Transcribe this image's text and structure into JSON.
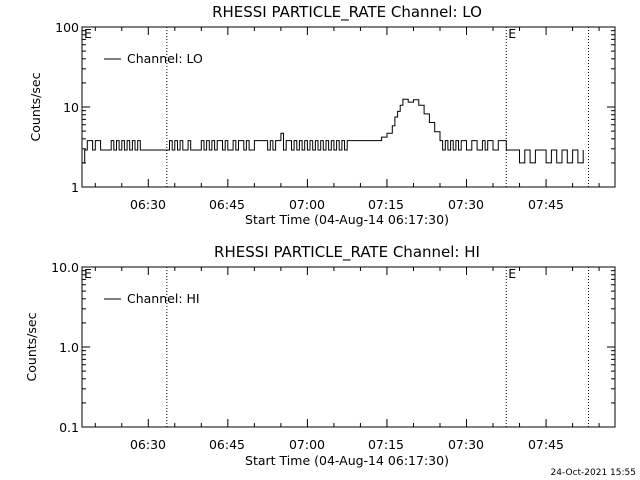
{
  "footer_date": "24-Oct-2021 15:55",
  "chart_data": [
    {
      "type": "line",
      "title": "RHESSI PARTICLE_RATE Channel: LO",
      "xlabel": "Start Time (04-Aug-14 06:17:30)",
      "ylabel": "Counts/sec",
      "yscale": "log",
      "ylim": [
        1,
        100
      ],
      "ytick_labels": [
        "1",
        "10",
        "100"
      ],
      "xlim": [
        "06:17:30",
        "07:58:00"
      ],
      "xtick_labels": [
        "06:30",
        "06:45",
        "07:00",
        "07:15",
        "07:30",
        "07:45"
      ],
      "legend": [
        "Channel: LO"
      ],
      "legend_position": "top-left",
      "markers": [
        {
          "time": "06:33:30",
          "label": ""
        },
        {
          "time": "07:37:30",
          "label": "E"
        },
        {
          "time": "07:53:00",
          "label": ""
        }
      ],
      "start_marker_label": "E",
      "series": [
        {
          "name": "Channel: LO",
          "x": [
            "06:17:30",
            "06:18:00",
            "06:18:30",
            "06:19:30",
            "06:20:00",
            "06:21:00",
            "06:21:30",
            "06:23:00",
            "06:23:30",
            "06:24:00",
            "06:24:30",
            "06:25:00",
            "06:25:30",
            "06:26:00",
            "06:26:30",
            "06:27:00",
            "06:27:30",
            "06:28:00",
            "06:28:30",
            "06:29:00",
            "06:30:00",
            "06:34:00",
            "06:34:30",
            "06:35:00",
            "06:35:30",
            "06:36:00",
            "06:36:30",
            "06:37:30",
            "06:38:00",
            "06:40:00",
            "06:40:30",
            "06:41:00",
            "06:41:30",
            "06:42:00",
            "06:42:30",
            "06:43:00",
            "06:44:00",
            "06:44:30",
            "06:45:00",
            "06:46:00",
            "06:46:30",
            "06:47:00",
            "06:48:00",
            "06:48:30",
            "06:49:00",
            "06:50:00",
            "06:52:00",
            "06:52:30",
            "06:53:00",
            "06:53:30",
            "06:54:00",
            "06:55:00",
            "06:55:30",
            "06:56:00",
            "06:57:00",
            "06:57:30",
            "06:58:00",
            "06:58:30",
            "06:59:00",
            "06:59:30",
            "07:00:00",
            "07:00:30",
            "07:01:00",
            "07:01:30",
            "07:02:00",
            "07:02:30",
            "07:03:00",
            "07:03:30",
            "07:04:00",
            "07:04:30",
            "07:05:00",
            "07:05:30",
            "07:06:00",
            "07:06:30",
            "07:07:00",
            "07:07:30",
            "07:08:00",
            "07:10:00",
            "07:12:00",
            "07:13:00",
            "07:14:00",
            "07:15:00",
            "07:16:00",
            "07:16:30",
            "07:17:00",
            "07:17:30",
            "07:18:00",
            "07:19:00",
            "07:20:00",
            "07:21:00",
            "07:22:00",
            "07:23:00",
            "07:24:00",
            "07:25:00",
            "07:25:30",
            "07:26:00",
            "07:26:30",
            "07:27:00",
            "07:27:30",
            "07:28:00",
            "07:28:30",
            "07:29:00",
            "07:30:00",
            "07:31:00",
            "07:32:00",
            "07:33:00",
            "07:33:30",
            "07:34:00",
            "07:35:00",
            "07:36:00",
            "07:37:30",
            "07:38:00",
            "07:38:30",
            "07:39:00",
            "07:40:00",
            "07:41:00",
            "07:42:00",
            "07:43:00",
            "07:44:00",
            "07:45:00",
            "07:46:00",
            "07:47:00",
            "07:48:00",
            "07:49:00",
            "07:50:00",
            "07:51:00",
            "07:52:00"
          ],
          "y": [
            2.0,
            2.9,
            3.8,
            2.9,
            3.8,
            2.9,
            2.9,
            3.8,
            2.9,
            3.8,
            2.9,
            3.8,
            2.9,
            3.8,
            2.9,
            3.8,
            2.9,
            3.8,
            2.9,
            2.9,
            2.9,
            3.8,
            2.9,
            3.8,
            2.9,
            3.8,
            2.9,
            3.8,
            2.9,
            3.8,
            2.9,
            3.8,
            2.9,
            3.8,
            2.9,
            3.8,
            2.9,
            3.8,
            2.9,
            3.8,
            2.9,
            3.8,
            2.9,
            3.8,
            2.9,
            3.8,
            3.8,
            2.9,
            3.8,
            2.9,
            3.8,
            4.7,
            2.9,
            3.8,
            2.9,
            3.8,
            2.9,
            3.8,
            2.9,
            3.8,
            2.9,
            3.8,
            2.9,
            3.8,
            2.9,
            3.8,
            2.9,
            3.8,
            2.9,
            3.8,
            2.9,
            3.8,
            2.9,
            3.8,
            2.9,
            3.8,
            3.8,
            3.8,
            3.8,
            3.8,
            4.2,
            4.7,
            5.8,
            7.5,
            8.8,
            10.5,
            12.5,
            11.5,
            12.3,
            10.5,
            8.2,
            6.4,
            4.9,
            3.8,
            2.9,
            3.8,
            2.9,
            3.8,
            2.9,
            3.8,
            2.9,
            3.8,
            2.9,
            3.8,
            2.9,
            3.8,
            2.9,
            3.8,
            2.9,
            3.8,
            2.9,
            2.9,
            2.9,
            2.9,
            2.0,
            2.9,
            2.0,
            2.9,
            2.9,
            2.0,
            2.9,
            2.0,
            2.9,
            2.0,
            2.9,
            2.0,
            2.9
          ]
        }
      ]
    },
    {
      "type": "line",
      "title": "RHESSI PARTICLE_RATE Channel: HI",
      "xlabel": "Start Time (04-Aug-14 06:17:30)",
      "ylabel": "Counts/sec",
      "yscale": "log",
      "ylim": [
        0.1,
        10
      ],
      "ytick_labels": [
        "0.1",
        "1.0",
        "10.0"
      ],
      "xlim": [
        "06:17:30",
        "07:58:00"
      ],
      "xtick_labels": [
        "06:30",
        "06:45",
        "07:00",
        "07:15",
        "07:30",
        "07:45"
      ],
      "legend": [
        "Channel: HI"
      ],
      "legend_position": "top-left",
      "markers": [
        {
          "time": "06:33:30",
          "label": ""
        },
        {
          "time": "07:37:30",
          "label": "E"
        },
        {
          "time": "07:53:00",
          "label": ""
        }
      ],
      "start_marker_label": "E",
      "series": [
        {
          "name": "Channel: HI",
          "x": [],
          "y": []
        }
      ]
    }
  ]
}
